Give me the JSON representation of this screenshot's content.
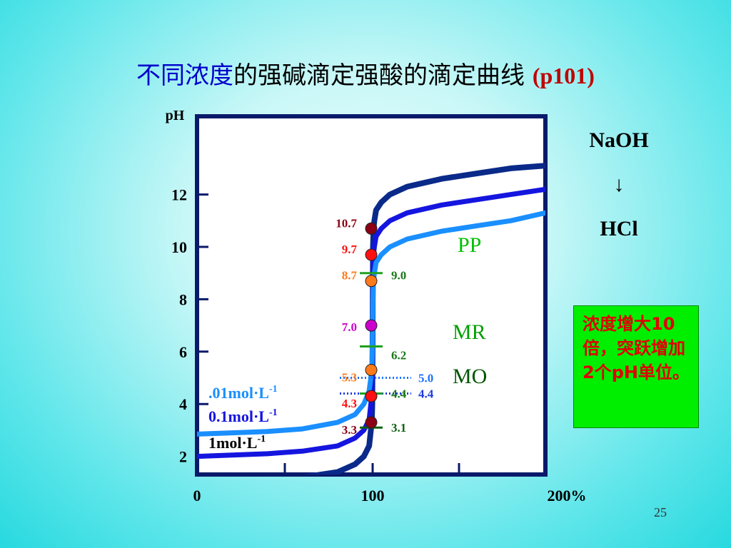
{
  "title": {
    "part1": "不同浓度",
    "part2": "的强碱滴定强酸的滴定曲线",
    "part3": "(p101)"
  },
  "titrant": {
    "top": "NaOH",
    "arrow": "↓",
    "bottom": "HCl"
  },
  "note": "浓度增大10倍，突跃增加2个pH单位。",
  "page_number": "25",
  "chart_data": {
    "type": "line",
    "ylabel": "pH",
    "xlabel": "",
    "xlim": [
      0,
      200
    ],
    "ylim": [
      0,
      14
    ],
    "x_ticks": [
      "0",
      "100",
      "200%"
    ],
    "x_minor_ticks": [
      0,
      50,
      100,
      150,
      200
    ],
    "y_ticks": [
      2,
      4,
      6,
      8,
      10,
      12
    ],
    "colors": {
      "strong": "#0a2a8a",
      "mid": "#1515e0",
      "dilute": "#1a8fff"
    },
    "series": [
      {
        "name": "1mol·L-1",
        "label_base": "1mol·L",
        "label_sup": "-1",
        "color": "#0a2a8a",
        "x": [
          0,
          20,
          40,
          60,
          80,
          90,
          95,
          98,
          99,
          99.5,
          99.8,
          100,
          100.2,
          100.5,
          101,
          102,
          105,
          110,
          120,
          140,
          160,
          180,
          200
        ],
        "y": [
          1.0,
          1.05,
          1.1,
          1.2,
          1.4,
          1.7,
          2.0,
          2.4,
          3.0,
          3.3,
          4.0,
          7.0,
          10.0,
          10.7,
          11.0,
          11.4,
          11.7,
          12.0,
          12.3,
          12.6,
          12.8,
          13.0,
          13.1
        ]
      },
      {
        "name": "0.1mol·L-1",
        "label_base": "0.1mol·L",
        "label_sup": "-1",
        "color": "#1515e0",
        "x": [
          0,
          20,
          40,
          60,
          80,
          90,
          95,
          98,
          99,
          99.5,
          99.8,
          100,
          100.2,
          100.5,
          101,
          102,
          105,
          110,
          120,
          140,
          160,
          180,
          200
        ],
        "y": [
          2.0,
          2.05,
          2.1,
          2.2,
          2.4,
          2.7,
          3.0,
          3.4,
          4.0,
          4.3,
          5.0,
          7.0,
          9.0,
          9.7,
          10.0,
          10.4,
          10.7,
          11.0,
          11.3,
          11.6,
          11.8,
          12.0,
          12.2
        ]
      },
      {
        "name": ".01mol·L-1",
        "label_base": ".01mol·L",
        "label_sup": "-1",
        "color": "#1a8fff",
        "x": [
          0,
          20,
          40,
          60,
          80,
          90,
          95,
          98,
          99,
          99.5,
          99.8,
          100,
          100.2,
          100.5,
          101,
          102,
          105,
          110,
          120,
          140,
          160,
          180,
          200
        ],
        "y": [
          2.85,
          2.9,
          2.95,
          3.05,
          3.3,
          3.6,
          4.0,
          4.5,
          5.0,
          5.3,
          6.0,
          7.0,
          8.0,
          8.7,
          9.0,
          9.4,
          9.7,
          10.0,
          10.3,
          10.6,
          10.8,
          11.0,
          11.3
        ]
      }
    ],
    "points": [
      {
        "y": 10.7,
        "label": "10.7",
        "color": "#8b0015"
      },
      {
        "y": 9.7,
        "label": "9.7",
        "color": "#ff1010"
      },
      {
        "y": 8.7,
        "label": "8.7",
        "color": "#ff7a1a"
      },
      {
        "y": 7.0,
        "label": "7.0",
        "color": "#cc00cc"
      },
      {
        "y": 5.3,
        "label": "5.3",
        "color": "#ff7a1a"
      },
      {
        "y": 4.3,
        "label": "4.3",
        "color": "#ff1010"
      },
      {
        "y": 3.3,
        "label": "3.3",
        "color": "#8b0015"
      }
    ],
    "indicator_marks": [
      {
        "y": 9.0,
        "label": "9.0",
        "color": "#20a020",
        "label_color": "#1a7a1a"
      },
      {
        "y": 6.2,
        "label": "6.2",
        "color": "#20a020",
        "label_color": "#1a7a1a"
      },
      {
        "y": 4.4,
        "label": "4.4",
        "color": "#20a020",
        "label_color": "#1a7a1a"
      },
      {
        "y": 3.1,
        "label": "3.1",
        "color": "#106010",
        "label_color": "#106010"
      }
    ],
    "dotted_marks": [
      {
        "y": 5.0,
        "label": "5.0",
        "color": "#1a70ff"
      },
      {
        "y": 4.4,
        "label": "4.4",
        "color": "#1a3adf"
      }
    ],
    "indicators": [
      {
        "label": "PP",
        "color": "#00c000"
      },
      {
        "label": "MR",
        "color": "#00a000"
      },
      {
        "label": "MO",
        "color": "#005500"
      }
    ]
  }
}
